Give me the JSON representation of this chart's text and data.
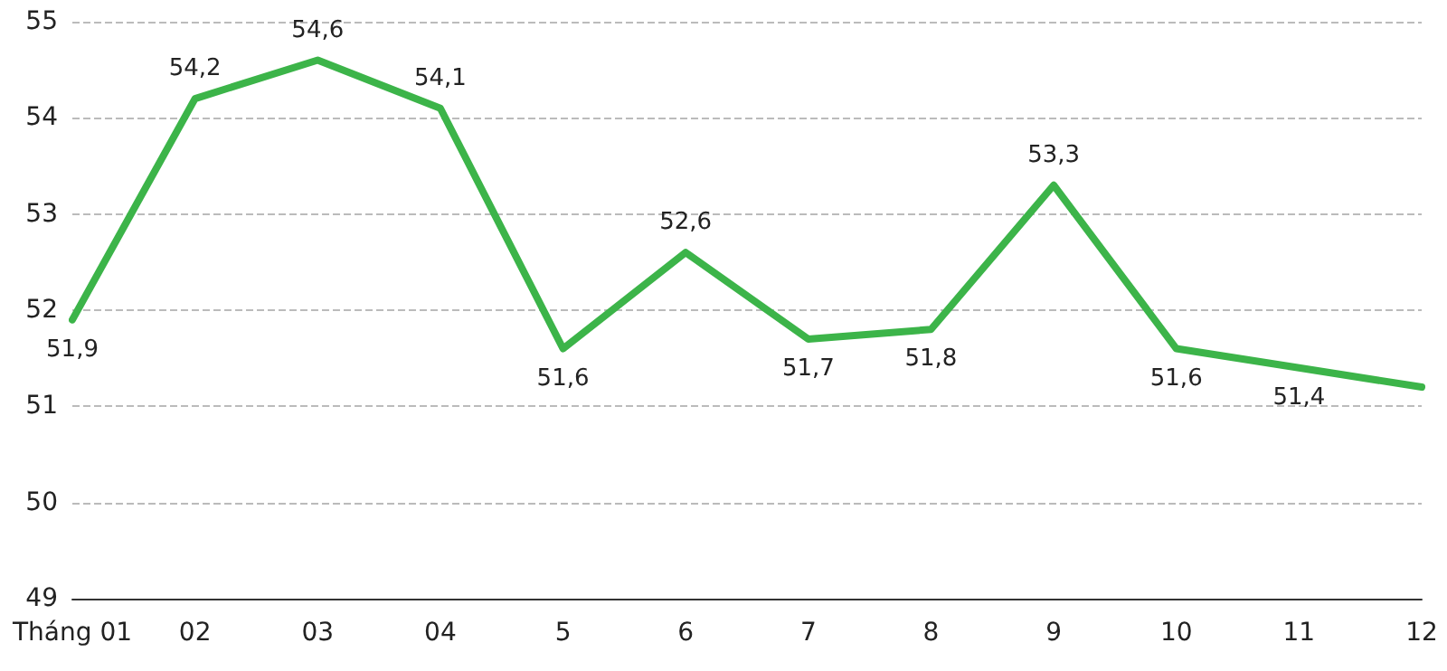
{
  "chart_data": {
    "type": "line",
    "categories": [
      "Tháng 01",
      "02",
      "03",
      "04",
      "5",
      "6",
      "7",
      "8",
      "9",
      "10",
      "11",
      "12"
    ],
    "series": [
      {
        "color": "#3cb449",
        "values": [
          51.9,
          54.2,
          54.6,
          54.1,
          51.6,
          52.6,
          51.7,
          51.8,
          53.3,
          51.6,
          51.4,
          51.2
        ],
        "value_labels": [
          "51,9",
          "54,2",
          "54,6",
          "54,1",
          "51,6",
          "52,6",
          "51,7",
          "51,8",
          "53,3",
          "51,6",
          "51,4",
          null
        ]
      }
    ],
    "ylim": [
      49,
      55
    ],
    "yticks": [
      49,
      50,
      51,
      52,
      53,
      54,
      55
    ],
    "grid": "y",
    "marker": "none",
    "line_style": "solid"
  }
}
